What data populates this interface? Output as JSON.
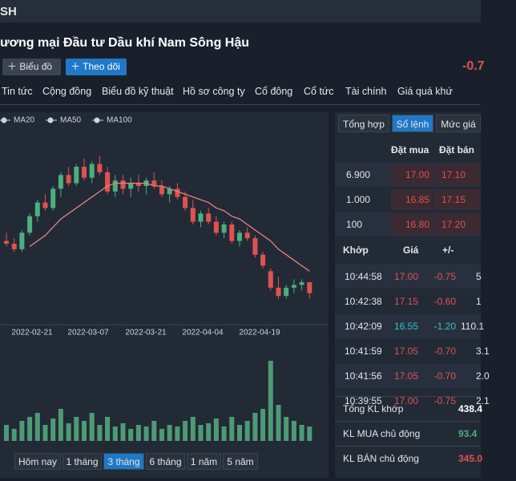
{
  "header": {
    "ticker": "SH",
    "title": "ương mại Đầu tư Dầu khí Nam Sông Hậu",
    "buttons": [
      "Biểu đồ",
      "Theo dõi"
    ],
    "change": "-0.7"
  },
  "tabs": [
    "Tin tức",
    "Cộng đồng",
    "Biểu đồ kỹ thuật",
    "Hồ sơ công ty",
    "Cổ đông",
    "Cổ tức",
    "Tài chính",
    "Giá quá khứ"
  ],
  "chart_data": {
    "type": "candlestick",
    "legend": [
      "MA20",
      "MA50",
      "MA100"
    ],
    "dates": [
      "2022-02-21",
      "2022-03-07",
      "2022-03-21",
      "2022-04-04",
      "2022-04-19"
    ],
    "up_color": "#4caf7d",
    "down_color": "#e0524f",
    "ma_color": "#e88080",
    "volume_color": "#4e9a74",
    "ylim": [
      16,
      23
    ],
    "volume_lim": [
      0,
      110
    ],
    "ohlc": [
      [
        18.9,
        19.2,
        18.7,
        18.8
      ],
      [
        18.8,
        19.0,
        18.5,
        18.6
      ],
      [
        18.6,
        19.3,
        18.5,
        19.2
      ],
      [
        19.2,
        19.9,
        19.1,
        19.8
      ],
      [
        19.8,
        20.4,
        19.6,
        20.3
      ],
      [
        20.3,
        20.6,
        20.0,
        20.1
      ],
      [
        20.1,
        20.9,
        20.0,
        20.8
      ],
      [
        20.8,
        21.4,
        20.5,
        21.3
      ],
      [
        21.3,
        21.6,
        20.9,
        21.0
      ],
      [
        21.0,
        21.7,
        20.9,
        21.6
      ],
      [
        21.6,
        21.9,
        21.1,
        21.2
      ],
      [
        21.2,
        21.8,
        21.0,
        21.7
      ],
      [
        21.7,
        22.0,
        21.3,
        21.4
      ],
      [
        21.4,
        21.6,
        20.6,
        20.7
      ],
      [
        20.7,
        21.3,
        20.5,
        21.1
      ],
      [
        21.1,
        21.3,
        20.6,
        20.8
      ],
      [
        20.8,
        21.2,
        20.5,
        21.0
      ],
      [
        21.0,
        21.3,
        20.7,
        20.9
      ],
      [
        20.9,
        21.2,
        20.6,
        21.1
      ],
      [
        21.1,
        21.4,
        20.8,
        20.9
      ],
      [
        20.9,
        21.1,
        20.5,
        20.6
      ],
      [
        20.6,
        20.9,
        20.3,
        20.8
      ],
      [
        20.8,
        21.0,
        20.4,
        20.5
      ],
      [
        20.5,
        20.7,
        20.0,
        20.1
      ],
      [
        20.1,
        20.4,
        19.5,
        19.6
      ],
      [
        19.6,
        20.0,
        19.4,
        19.9
      ],
      [
        19.9,
        20.1,
        19.5,
        19.6
      ],
      [
        19.6,
        19.8,
        19.1,
        19.2
      ],
      [
        19.2,
        19.6,
        19.0,
        19.5
      ],
      [
        19.5,
        19.6,
        18.8,
        18.9
      ],
      [
        18.9,
        19.3,
        18.7,
        19.2
      ],
      [
        19.2,
        19.4,
        18.9,
        19.0
      ],
      [
        19.0,
        19.1,
        18.3,
        18.4
      ],
      [
        18.4,
        18.5,
        17.9,
        18.0
      ],
      [
        17.8,
        17.9,
        17.1,
        17.2
      ],
      [
        17.2,
        17.6,
        16.8,
        16.9
      ],
      [
        16.9,
        17.3,
        16.8,
        17.2
      ],
      [
        17.2,
        17.5,
        17.0,
        17.3
      ],
      [
        17.3,
        17.5,
        17.1,
        17.4
      ],
      [
        17.4,
        17.4,
        16.8,
        17.0
      ]
    ],
    "ma20": [
      null,
      null,
      null,
      18.7,
      18.9,
      19.1,
      19.4,
      19.7,
      19.9,
      20.1,
      20.3,
      20.5,
      20.7,
      20.9,
      21.0,
      21.0,
      21.0,
      21.0,
      21.0,
      20.9,
      20.9,
      20.8,
      20.7,
      20.6,
      20.5,
      20.4,
      20.3,
      20.1,
      20.0,
      19.8,
      19.7,
      19.5,
      19.3,
      19.1,
      18.9,
      18.6,
      18.4,
      18.2,
      18.0,
      17.8
    ],
    "volume": [
      20,
      15,
      25,
      30,
      35,
      20,
      28,
      40,
      22,
      30,
      25,
      35,
      20,
      30,
      18,
      22,
      15,
      20,
      18,
      25,
      15,
      20,
      18,
      25,
      30,
      20,
      22,
      28,
      18,
      30,
      20,
      25,
      35,
      40,
      100,
      45,
      30,
      25,
      20,
      18
    ]
  },
  "ranges": [
    "Hôm nay",
    "1 tháng",
    "3 tháng",
    "6 tháng",
    "1 năm",
    "5 năm"
  ],
  "active_range": 2,
  "order_book": {
    "tabs": [
      "Tổng hợp",
      "Sổ lệnh",
      "Mức giá"
    ],
    "active_tab": 1,
    "headers": [
      "Đặt mua",
      "Đặt bán"
    ],
    "rows": [
      [
        "6.900",
        "17.00",
        "17.10"
      ],
      [
        "1.000",
        "16.85",
        "17.15"
      ],
      [
        "100",
        "16.80",
        "17.20"
      ]
    ]
  },
  "trades": {
    "headers": [
      "Khớp",
      "Giá",
      "+/-"
    ],
    "rows": [
      {
        "time": "10:44:58",
        "price": "17.00",
        "change": "-0.75",
        "volume": "5",
        "color": "#e0524f"
      },
      {
        "time": "10:42:38",
        "price": "17.15",
        "change": "-0.60",
        "volume": "1",
        "color": "#e0524f"
      },
      {
        "time": "10:42:09",
        "price": "16.55",
        "change": "-1.20",
        "volume": "110.1",
        "color": "#2ec5c5"
      },
      {
        "time": "10:41:59",
        "price": "17.05",
        "change": "-0.70",
        "volume": "3.1",
        "color": "#e0524f"
      },
      {
        "time": "10:41:56",
        "price": "17.05",
        "change": "-0.70",
        "volume": "2.0",
        "color": "#e0524f"
      },
      {
        "time": "10:39:55",
        "price": "17.00",
        "change": "-0.75",
        "volume": "2.1",
        "color": "#e0524f"
      }
    ]
  },
  "summary": [
    {
      "label": "Tổng KL khớp",
      "value": "438.4",
      "color": "#ffffff"
    },
    {
      "label": "KL MUA chủ động",
      "value": "93.4",
      "color": "#4caf7d"
    },
    {
      "label": "KL BÁN chủ động",
      "value": "345.0",
      "color": "#e0524f"
    }
  ]
}
